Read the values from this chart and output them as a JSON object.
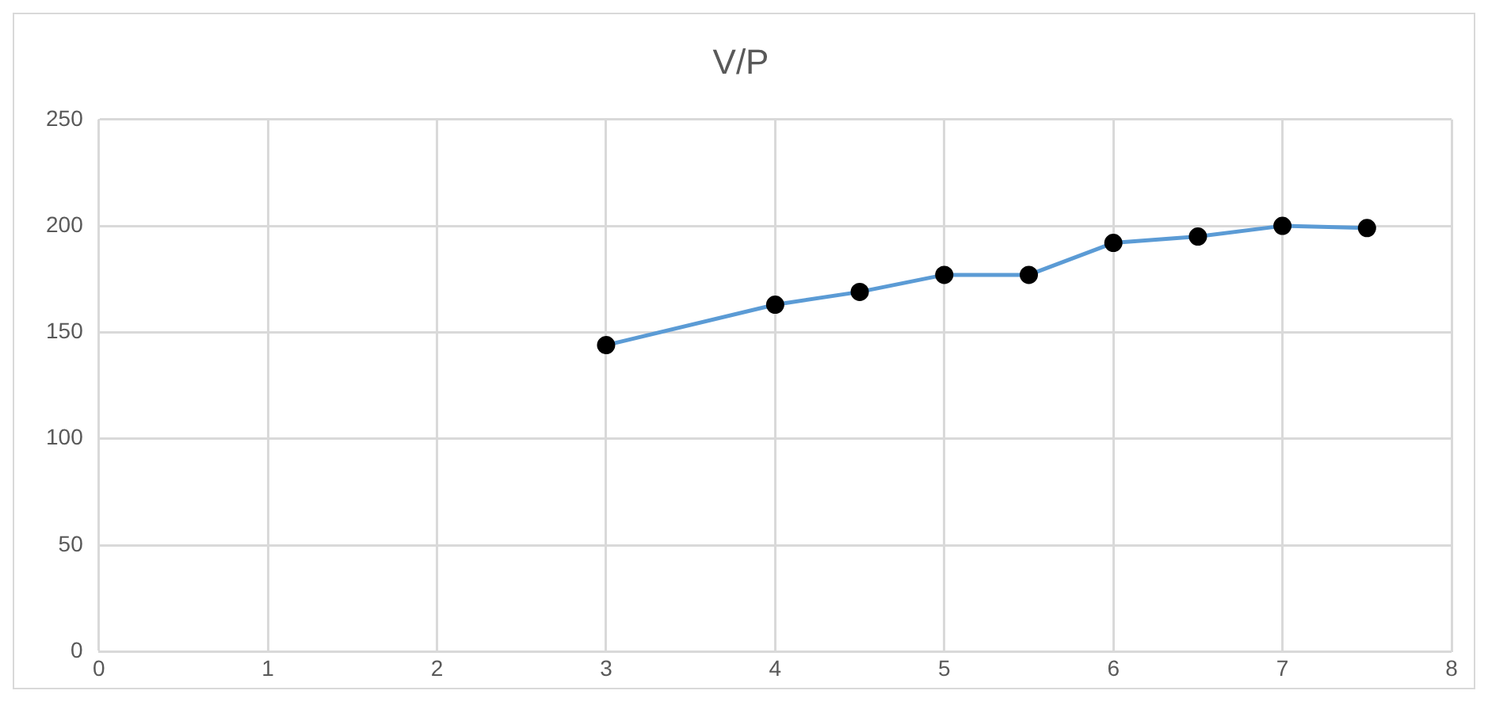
{
  "chart_data": {
    "type": "line",
    "title": "V/P",
    "x": [
      3,
      4,
      4.5,
      5,
      5.5,
      6,
      6.5,
      7,
      7.5
    ],
    "series": [
      {
        "color": "#5b9bd5",
        "values": [
          144,
          163,
          169,
          177,
          177,
          192,
          195,
          200,
          199
        ]
      }
    ],
    "xlim": [
      0,
      8
    ],
    "xticks": [
      0,
      1,
      2,
      3,
      4,
      5,
      6,
      7,
      8
    ],
    "ylim": [
      0,
      250
    ],
    "yticks": [
      0,
      50,
      100,
      150,
      200,
      250
    ],
    "grid": true,
    "legend": false,
    "marker": "circle",
    "line_style": "solid"
  }
}
